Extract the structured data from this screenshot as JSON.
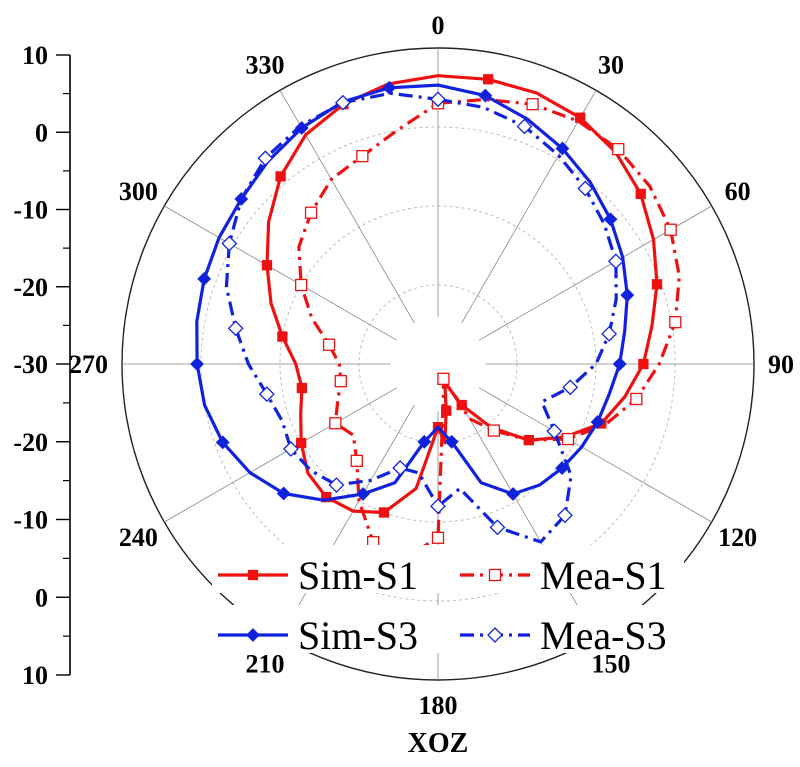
{
  "chart_data": {
    "type": "polar-line",
    "xlabel": "XOZ",
    "angle_tick_labels": [
      "0",
      "30",
      "60",
      "90",
      "120",
      "150",
      "180",
      "210",
      "240",
      "270",
      "300",
      "330"
    ],
    "radial_tick_labels_top": [
      "10",
      "0",
      "-10",
      "-20",
      "-30"
    ],
    "radial_tick_labels_bottom": [
      "-20",
      "-10",
      "0",
      "10"
    ],
    "r_range_db": [
      -30,
      10
    ],
    "series": [
      {
        "name": "Sim-S1",
        "color": "#ee1111",
        "style": "solid",
        "marker": "square-filled",
        "points": [
          [
            0,
            6.5
          ],
          [
            10,
            6.6
          ],
          [
            20,
            6.5
          ],
          [
            30,
            6.0
          ],
          [
            40,
            5.0
          ],
          [
            50,
            3.5
          ],
          [
            60,
            1.5
          ],
          [
            70,
            -0.5
          ],
          [
            80,
            -2.5
          ],
          [
            90,
            -4.0
          ],
          [
            100,
            -6.0
          ],
          [
            110,
            -8.0
          ],
          [
            120,
            -11.5
          ],
          [
            130,
            -15.0
          ],
          [
            140,
            -19.5
          ],
          [
            150,
            -24.0
          ],
          [
            160,
            -27.5
          ],
          [
            170,
            -24.0
          ],
          [
            175,
            -20.0
          ],
          [
            180,
            -22.0
          ],
          [
            190,
            -14.0
          ],
          [
            200,
            -10.0
          ],
          [
            210,
            -8.5
          ],
          [
            220,
            -8.0
          ],
          [
            230,
            -8.5
          ],
          [
            240,
            -10.0
          ],
          [
            250,
            -11.5
          ],
          [
            260,
            -12.5
          ],
          [
            270,
            -12.0
          ],
          [
            280,
            -10.0
          ],
          [
            290,
            -7.5
          ],
          [
            300,
            -5.0
          ],
          [
            310,
            -2.0
          ],
          [
            320,
            1.0
          ],
          [
            330,
            3.5
          ],
          [
            340,
            5.0
          ],
          [
            350,
            6.0
          ]
        ]
      },
      {
        "name": "Mea-S1",
        "color": "#ee1111",
        "style": "dashdot",
        "marker": "square-open",
        "points": [
          [
            0,
            3.0
          ],
          [
            10,
            4.0
          ],
          [
            20,
            5.0
          ],
          [
            30,
            5.5
          ],
          [
            40,
            5.5
          ],
          [
            50,
            5.0
          ],
          [
            60,
            4.0
          ],
          [
            70,
            2.5
          ],
          [
            80,
            0.5
          ],
          [
            90,
            -2.0
          ],
          [
            100,
            -4.5
          ],
          [
            110,
            -7.5
          ],
          [
            120,
            -11.0
          ],
          [
            130,
            -15.0
          ],
          [
            140,
            -19.0
          ],
          [
            150,
            -22.0
          ],
          [
            160,
            -28.0
          ],
          [
            170,
            -26.0
          ],
          [
            180,
            -8.0
          ],
          [
            190,
            -5.0
          ],
          [
            200,
            -6.0
          ],
          [
            210,
            -10.0
          ],
          [
            220,
            -14.0
          ],
          [
            230,
            -16.0
          ],
          [
            240,
            -15.0
          ],
          [
            250,
            -16.5
          ],
          [
            260,
            -17.5
          ],
          [
            270,
            -17.5
          ],
          [
            280,
            -16.0
          ],
          [
            290,
            -13.0
          ],
          [
            300,
            -10.0
          ],
          [
            310,
            -7.0
          ],
          [
            320,
            -5.0
          ],
          [
            330,
            -3.0
          ],
          [
            340,
            -2.0
          ],
          [
            350,
            0.0
          ]
        ]
      },
      {
        "name": "Sim-S3",
        "color": "#1122dd",
        "style": "solid",
        "marker": "diamond-filled",
        "points": [
          [
            0,
            5.3
          ],
          [
            10,
            4.5
          ],
          [
            20,
            3.0
          ],
          [
            30,
            1.5
          ],
          [
            40,
            0.0
          ],
          [
            50,
            -1.5
          ],
          [
            60,
            -3.0
          ],
          [
            70,
            -4.5
          ],
          [
            80,
            -6.0
          ],
          [
            90,
            -7.0
          ],
          [
            100,
            -8.0
          ],
          [
            110,
            -8.5
          ],
          [
            120,
            -9.0
          ],
          [
            130,
            -9.5
          ],
          [
            140,
            -10.0
          ],
          [
            150,
            -11.0
          ],
          [
            160,
            -14.0
          ],
          [
            170,
            -20.0
          ],
          [
            180,
            -22.0
          ],
          [
            190,
            -20.0
          ],
          [
            200,
            -14.0
          ],
          [
            210,
            -11.0
          ],
          [
            220,
            -7.5
          ],
          [
            230,
            -4.5
          ],
          [
            240,
            -2.5
          ],
          [
            250,
            -1.0
          ],
          [
            260,
            0.0
          ],
          [
            270,
            0.5
          ],
          [
            280,
            1.0
          ],
          [
            290,
            1.5
          ],
          [
            300,
            2.0
          ],
          [
            310,
            2.5
          ],
          [
            320,
            3.5
          ],
          [
            330,
            4.5
          ],
          [
            340,
            5.3
          ],
          [
            350,
            5.5
          ]
        ]
      },
      {
        "name": "Mea-S3",
        "color": "#1122dd",
        "style": "dashdot",
        "marker": "diamond-open",
        "points": [
          [
            0,
            3.5
          ],
          [
            10,
            3.0
          ],
          [
            20,
            2.0
          ],
          [
            30,
            0.5
          ],
          [
            40,
            -1.0
          ],
          [
            50,
            -2.5
          ],
          [
            60,
            -4.0
          ],
          [
            70,
            -6.0
          ],
          [
            80,
            -8.0
          ],
          [
            90,
            -10.0
          ],
          [
            100,
            -13.0
          ],
          [
            110,
            -16.0
          ],
          [
            120,
            -13.0
          ],
          [
            130,
            -8.0
          ],
          [
            140,
            -5.0
          ],
          [
            150,
            -4.0
          ],
          [
            160,
            -8.0
          ],
          [
            170,
            -14.0
          ],
          [
            180,
            -12.0
          ],
          [
            190,
            -16.0
          ],
          [
            200,
            -16.0
          ],
          [
            210,
            -13.0
          ],
          [
            220,
            -10.0
          ],
          [
            230,
            -9.0
          ],
          [
            240,
            -8.5
          ],
          [
            250,
            -9.0
          ],
          [
            260,
            -8.0
          ],
          [
            270,
            -6.0
          ],
          [
            280,
            -4.0
          ],
          [
            290,
            -1.5
          ],
          [
            300,
            0.5
          ],
          [
            310,
            2.5
          ],
          [
            320,
            4.0
          ],
          [
            330,
            4.8
          ],
          [
            340,
            5.2
          ],
          [
            350,
            4.8
          ]
        ]
      }
    ],
    "legend": {
      "placement": "bottom-center",
      "entries": [
        {
          "label": "Sim-S1"
        },
        {
          "label": "Mea-S1"
        },
        {
          "label": "Sim-S3"
        },
        {
          "label": "Mea-S3"
        }
      ]
    }
  }
}
